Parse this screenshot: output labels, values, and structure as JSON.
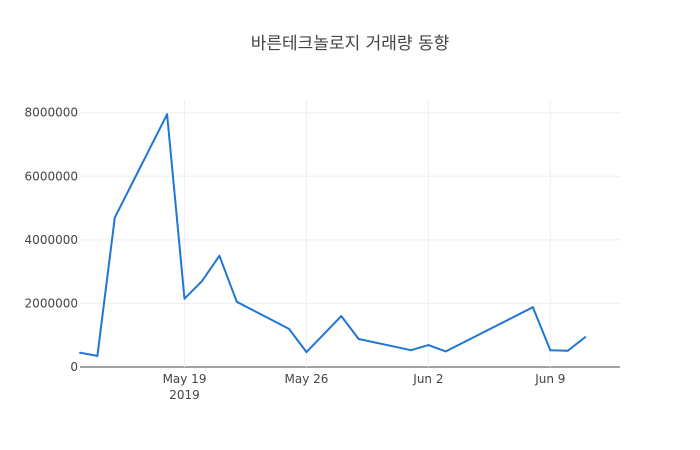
{
  "chart_data": {
    "type": "line",
    "title": "바른테크놀로지 거래량 동향",
    "xlabel": "",
    "ylabel": "",
    "x_axis_type": "date",
    "xlim": [
      "2019-05-13",
      "2019-06-13"
    ],
    "ylim": [
      0,
      8400000
    ],
    "grid": true,
    "line_color": "#1f77d4",
    "x_ticks": [
      {
        "date": "2019-05-19",
        "label": "May 19",
        "sublabel": "2019"
      },
      {
        "date": "2019-05-26",
        "label": "May 26",
        "sublabel": ""
      },
      {
        "date": "2019-06-02",
        "label": "Jun 2",
        "sublabel": ""
      },
      {
        "date": "2019-06-09",
        "label": "Jun 9",
        "sublabel": ""
      }
    ],
    "y_ticks": [
      {
        "value": 0,
        "label": "0"
      },
      {
        "value": 2000000,
        "label": "2000000"
      },
      {
        "value": 4000000,
        "label": "4000000"
      },
      {
        "value": 6000000,
        "label": "6000000"
      },
      {
        "value": 8000000,
        "label": "8000000"
      }
    ],
    "series": [
      {
        "points": [
          {
            "x": "2019-05-13",
            "y": 450000
          },
          {
            "x": "2019-05-14",
            "y": 350000
          },
          {
            "x": "2019-05-15",
            "y": 4700000
          },
          {
            "x": "2019-05-18",
            "y": 7950000
          },
          {
            "x": "2019-05-19",
            "y": 2150000
          },
          {
            "x": "2019-05-20",
            "y": 2700000
          },
          {
            "x": "2019-05-21",
            "y": 3500000
          },
          {
            "x": "2019-05-22",
            "y": 2050000
          },
          {
            "x": "2019-05-25",
            "y": 1200000
          },
          {
            "x": "2019-05-26",
            "y": 470000
          },
          {
            "x": "2019-05-28",
            "y": 1600000
          },
          {
            "x": "2019-05-29",
            "y": 880000
          },
          {
            "x": "2019-06-01",
            "y": 530000
          },
          {
            "x": "2019-06-02",
            "y": 690000
          },
          {
            "x": "2019-06-03",
            "y": 490000
          },
          {
            "x": "2019-06-08",
            "y": 1880000
          },
          {
            "x": "2019-06-09",
            "y": 530000
          },
          {
            "x": "2019-06-10",
            "y": 510000
          },
          {
            "x": "2019-06-11",
            "y": 940000
          }
        ]
      }
    ]
  }
}
